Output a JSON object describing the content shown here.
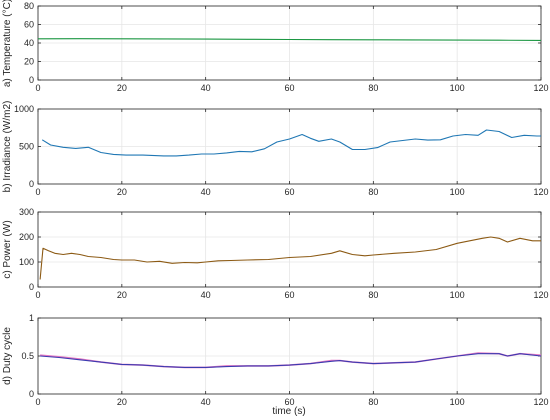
{
  "xlabel": "time (s)",
  "chart_data": [
    {
      "type": "line",
      "ylabel": "a) Temperature (°C)",
      "xlim": [
        0,
        120
      ],
      "ylim": [
        0,
        80
      ],
      "xticks": [
        0,
        20,
        40,
        60,
        80,
        100,
        120
      ],
      "yticks": [
        0,
        20,
        40,
        60,
        80
      ],
      "grid": true,
      "series": [
        {
          "color": "#1a9641",
          "x": [
            0,
            10,
            20,
            30,
            40,
            50,
            60,
            70,
            80,
            90,
            100,
            110,
            120
          ],
          "y": [
            44.5,
            44.6,
            44.5,
            44.4,
            44.2,
            44.0,
            43.8,
            43.6,
            43.5,
            43.3,
            43.1,
            43.0,
            42.8
          ]
        }
      ]
    },
    {
      "type": "line",
      "ylabel": "b) Irradiance (W/m2)",
      "xlim": [
        0,
        120
      ],
      "ylim": [
        0,
        1000
      ],
      "xticks": [
        0,
        20,
        40,
        60,
        80,
        100,
        120
      ],
      "yticks": [
        0,
        500,
        1000
      ],
      "grid": true,
      "series": [
        {
          "color": "#1f77b4",
          "x": [
            1,
            3,
            6,
            9,
            12,
            15,
            18,
            21,
            25,
            30,
            33,
            36,
            39,
            42,
            45,
            48,
            51,
            54,
            57,
            60,
            63,
            65,
            67,
            70,
            72,
            75,
            78,
            81,
            84,
            87,
            90,
            93,
            96,
            99,
            102,
            105,
            107,
            110,
            113,
            116,
            119,
            120
          ],
          "y": [
            590,
            520,
            490,
            475,
            490,
            420,
            395,
            385,
            385,
            375,
            375,
            385,
            400,
            400,
            415,
            435,
            430,
            470,
            560,
            600,
            660,
            610,
            570,
            600,
            560,
            460,
            460,
            485,
            560,
            580,
            600,
            585,
            590,
            640,
            660,
            650,
            720,
            700,
            620,
            650,
            640,
            640
          ]
        }
      ]
    },
    {
      "type": "line",
      "ylabel": "c) Power (W)",
      "xlim": [
        0,
        120
      ],
      "ylim": [
        0,
        300
      ],
      "xticks": [
        0,
        20,
        40,
        60,
        80,
        100,
        120
      ],
      "yticks": [
        0,
        100,
        200,
        300
      ],
      "grid": true,
      "series": [
        {
          "color": "#8c5a14",
          "x": [
            0.5,
            1.2,
            2.5,
            4,
            6,
            8,
            10,
            12,
            15,
            18,
            20,
            23,
            26,
            29,
            32,
            35,
            38,
            40,
            43,
            46,
            50,
            55,
            60,
            65,
            70,
            72,
            75,
            78,
            80,
            85,
            90,
            95,
            100,
            103,
            106,
            108,
            110,
            112,
            115,
            118,
            120
          ],
          "y": [
            30,
            155,
            145,
            135,
            130,
            135,
            130,
            122,
            118,
            110,
            108,
            108,
            100,
            103,
            95,
            98,
            97,
            100,
            105,
            106,
            108,
            110,
            118,
            122,
            135,
            145,
            130,
            125,
            128,
            135,
            140,
            150,
            175,
            185,
            195,
            200,
            195,
            180,
            195,
            185,
            185
          ]
        }
      ]
    },
    {
      "type": "line",
      "ylabel": "d) Duty cycle",
      "xlim": [
        0,
        120
      ],
      "ylim": [
        0,
        1
      ],
      "xticks": [
        0,
        20,
        40,
        60,
        80,
        100,
        120
      ],
      "yticks": [
        0,
        0.5,
        1
      ],
      "grid": true,
      "series": [
        {
          "color": "#e377c2",
          "x": [
            0.5,
            5,
            10,
            15,
            20,
            25,
            30,
            35,
            40,
            45,
            50,
            55,
            60,
            65,
            70,
            72,
            75,
            80,
            85,
            90,
            95,
            100,
            105,
            110,
            112,
            115,
            120
          ],
          "y": [
            0.51,
            0.49,
            0.46,
            0.42,
            0.39,
            0.38,
            0.36,
            0.35,
            0.35,
            0.37,
            0.37,
            0.37,
            0.38,
            0.4,
            0.44,
            0.44,
            0.42,
            0.4,
            0.41,
            0.42,
            0.46,
            0.5,
            0.54,
            0.53,
            0.5,
            0.53,
            0.51
          ]
        },
        {
          "color": "#3b3bb0",
          "x": [
            0.5,
            5,
            10,
            15,
            20,
            25,
            30,
            35,
            40,
            45,
            50,
            55,
            60,
            65,
            70,
            72,
            75,
            80,
            85,
            90,
            95,
            100,
            105,
            110,
            112,
            115,
            120
          ],
          "y": [
            0.5,
            0.48,
            0.45,
            0.42,
            0.39,
            0.38,
            0.36,
            0.35,
            0.35,
            0.36,
            0.37,
            0.37,
            0.38,
            0.4,
            0.43,
            0.44,
            0.42,
            0.4,
            0.41,
            0.42,
            0.46,
            0.5,
            0.53,
            0.53,
            0.5,
            0.53,
            0.5
          ]
        }
      ]
    }
  ]
}
